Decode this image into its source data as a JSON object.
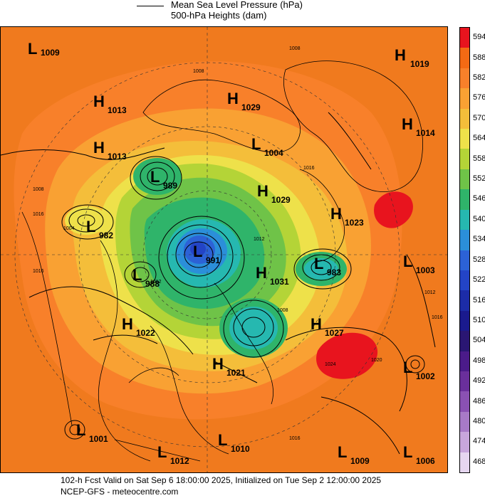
{
  "legend": {
    "line1": "Mean Sea Level Pressure (hPa)",
    "line2": "500-hPa Heights (dam)"
  },
  "footer": {
    "valid": "102-h Fcst Valid on Sat Sep  6 18:00:00 2025, Initialized on Tue Sep  2 12:00:00 2025",
    "source": "NCEP-GFS  -  meteocentre.com"
  },
  "colorbar": {
    "levels": [
      "594",
      "588",
      "582",
      "576",
      "570",
      "564",
      "558",
      "552",
      "546",
      "540",
      "534",
      "528",
      "522",
      "516",
      "510",
      "504",
      "498",
      "492",
      "486",
      "480",
      "474",
      "468"
    ],
    "colors": [
      "#e8141e",
      "#f46a14",
      "#f8802a",
      "#f9a133",
      "#f4be3a",
      "#eee14a",
      "#b4d437",
      "#6fc348",
      "#2fb46a",
      "#26b8b0",
      "#2b8fd9",
      "#2c62d6",
      "#2344c6",
      "#1c2ca8",
      "#1a1a8e",
      "#2a1673",
      "#4b1b8a",
      "#6a2f9c",
      "#8a51b3",
      "#a87ac7",
      "#c8a6dc",
      "#e6d6f0"
    ]
  },
  "map": {
    "centers": [
      {
        "type": "L",
        "value": "1009"
      },
      {
        "type": "H",
        "value": "1019"
      },
      {
        "type": "H",
        "value": "1013"
      },
      {
        "type": "H",
        "value": "1029"
      },
      {
        "type": "H",
        "value": "1014"
      },
      {
        "type": "H",
        "value": "1013"
      },
      {
        "type": "L",
        "value": "1004"
      },
      {
        "type": "L",
        "value": "989"
      },
      {
        "type": "H",
        "value": "1029"
      },
      {
        "type": "L",
        "value": "982"
      },
      {
        "type": "H",
        "value": "1023"
      },
      {
        "type": "L",
        "value": "991"
      },
      {
        "type": "L",
        "value": "983"
      },
      {
        "type": "L",
        "value": "1003"
      },
      {
        "type": "L",
        "value": "988"
      },
      {
        "type": "H",
        "value": "1031"
      },
      {
        "type": "H",
        "value": "1022"
      },
      {
        "type": "H",
        "value": "1027"
      },
      {
        "type": "H",
        "value": "1021"
      },
      {
        "type": "L",
        "value": "1002"
      },
      {
        "type": "L",
        "value": "1001"
      },
      {
        "type": "L",
        "value": "1010"
      },
      {
        "type": "L",
        "value": "1012"
      },
      {
        "type": "L",
        "value": "1009"
      },
      {
        "type": "L",
        "value": "1006"
      }
    ],
    "isobar_labels": [
      "1008",
      "1008",
      "1016",
      "1008",
      "1016",
      "1004",
      "1012",
      "1016",
      "1012",
      "1008",
      "1024",
      "1020",
      "1016",
      "1012",
      "1016"
    ]
  }
}
